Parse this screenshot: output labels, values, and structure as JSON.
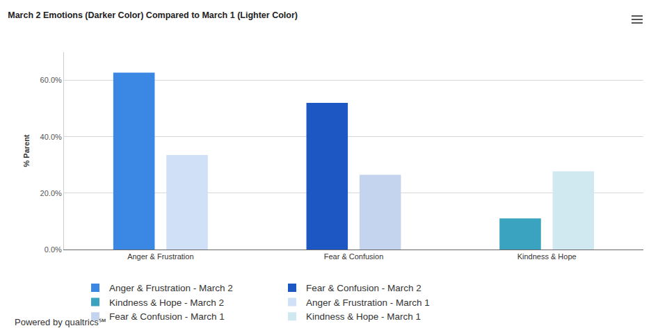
{
  "chart_data": {
    "type": "bar",
    "title": "March 2 Emotions (Darker Color) Compared to March 1 (Lighter Color)",
    "y_label": "% Parent",
    "categories": [
      "Anger & Frustration",
      "Fear & Confusion",
      "Kindness & Hope"
    ],
    "series": [
      {
        "name": "Anger & Frustration - March 2",
        "color": "#3a87e4",
        "values": [
          62.7,
          null,
          null
        ]
      },
      {
        "name": "Fear & Confusion - March 2",
        "color": "#1c57c4",
        "values": [
          null,
          52.0,
          null
        ]
      },
      {
        "name": "Kindness & Hope - March 2",
        "color": "#3aa3c0",
        "values": [
          null,
          null,
          11.0
        ]
      },
      {
        "name": "Anger & Frustration - March 1",
        "color": "#d0e0f7",
        "values": [
          33.5,
          null,
          null
        ]
      },
      {
        "name": "Fear & Confusion - March 1",
        "color": "#c5d4ee",
        "values": [
          null,
          26.5,
          null
        ]
      },
      {
        "name": "Kindness & Hope - March 1",
        "color": "#d0e8f0",
        "values": [
          null,
          null,
          27.7
        ]
      }
    ],
    "ylim": [
      0,
      70
    ],
    "yticks": [
      {
        "value": 0,
        "label": "0.0%"
      },
      {
        "value": 20,
        "label": "20.0%"
      },
      {
        "value": 40,
        "label": "40.0%"
      },
      {
        "value": 60,
        "label": "60.0%"
      }
    ],
    "grid": true,
    "legend": "bottom",
    "annotations": [
      "Powered by qualtrics℠"
    ]
  }
}
